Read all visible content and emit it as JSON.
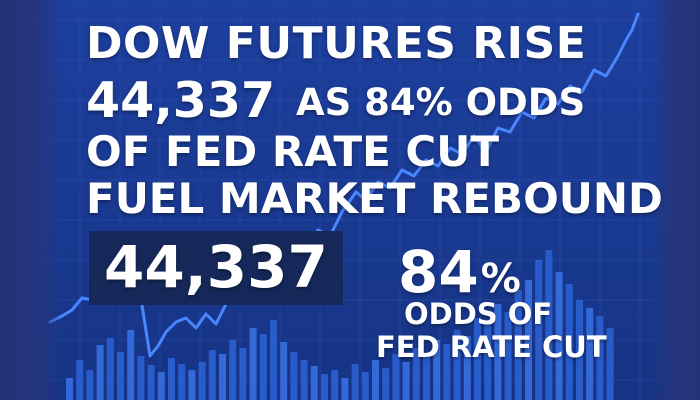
{
  "headline": {
    "line1": "DOW FUTURES RISE",
    "line2_value": "44,337",
    "line2_rest": "AS 84% ODDS",
    "line3": "OF FED RATE CUT",
    "line4": "FUEL MARKET REBOUND"
  },
  "callouts": {
    "index_value": "44,337",
    "odds_value": "84",
    "odds_unit": "%",
    "odds_label_line1": "ODDS OF",
    "odds_label_line2": "FED RATE CUT"
  },
  "colors": {
    "background": "#1a3a93",
    "text": "#ffffff",
    "value_box": "#16285a",
    "bars": "#2d63d6",
    "line": "#4a86ff"
  },
  "decorations": {
    "chart_line_icon": "rising-line-chart",
    "bars_icon": "volume-bars"
  }
}
